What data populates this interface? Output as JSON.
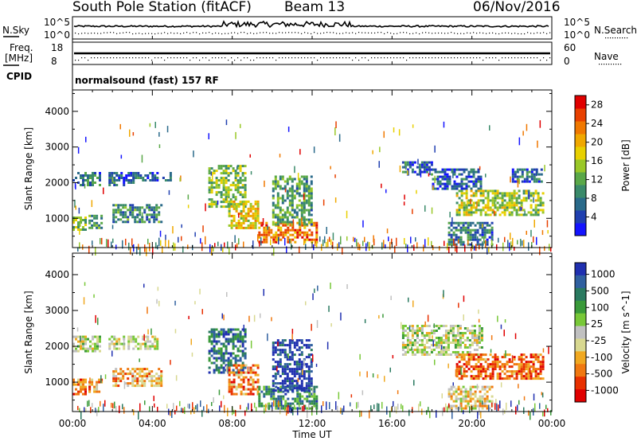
{
  "header": {
    "station": "South Pole Station (fitACF)",
    "beam": "Beam 13",
    "date": "06/Nov/2016"
  },
  "top_panels": {
    "nsky_label": "N.Sky",
    "nsky_ticks": [
      "10^5",
      "10^0"
    ],
    "nsearch_label": "N.Search",
    "nsearch_ticks": [
      "10^5",
      "10^0"
    ],
    "freq_label": "Freq.",
    "freq_unit": "[MHz]",
    "freq_ticks": [
      "18",
      "8"
    ],
    "nave_label": "Nave",
    "nave_ticks": [
      "60",
      "0"
    ],
    "cpid_label": "CPID",
    "cpid_text": "normalsound (fast) 157 RF"
  },
  "chart_data": [
    {
      "type": "heatmap",
      "name": "power",
      "ylabel": "Slant Range [km]",
      "yticks": [
        1000,
        2000,
        3000,
        4000
      ],
      "ylim": [
        180,
        4600
      ],
      "xlim": [
        0,
        24
      ],
      "colorbar_label": "Power [dB]",
      "colorbar_ticks": [
        4,
        8,
        12,
        16,
        20,
        24,
        28
      ],
      "colorbar_range": [
        0,
        30
      ],
      "colors": [
        "#1414ff",
        "#2040b0",
        "#2a6a8a",
        "#3a8a6a",
        "#5aa848",
        "#9ac828",
        "#e8d000",
        "#f0a800",
        "#f07800",
        "#e84000",
        "#e00000"
      ],
      "echo_regions": [
        {
          "t": [
            0.0,
            1.4
          ],
          "r": [
            1900,
            2300
          ],
          "level": 0.25
        },
        {
          "t": [
            1.8,
            3.0
          ],
          "r": [
            1950,
            2300
          ],
          "level": 0.22
        },
        {
          "t": [
            3.0,
            4.2
          ],
          "r": [
            2050,
            2300
          ],
          "level": 0.22
        },
        {
          "t": [
            4.5,
            5.0
          ],
          "r": [
            2050,
            2300
          ],
          "level": 0.2
        },
        {
          "t": [
            0.0,
            0.7
          ],
          "r": [
            700,
            1050
          ],
          "level": 0.45
        },
        {
          "t": [
            0.8,
            1.5
          ],
          "r": [
            750,
            1100
          ],
          "level": 0.35
        },
        {
          "t": [
            2.0,
            4.5
          ],
          "r": [
            900,
            1400
          ],
          "level": 0.3
        },
        {
          "t": [
            6.8,
            8.6
          ],
          "r": [
            1300,
            2500
          ],
          "level": 0.45
        },
        {
          "t": [
            7.8,
            9.3
          ],
          "r": [
            700,
            1500
          ],
          "level": 0.6
        },
        {
          "t": [
            9.3,
            12.2
          ],
          "r": [
            300,
            900
          ],
          "level": 0.75
        },
        {
          "t": [
            10.0,
            12.0
          ],
          "r": [
            800,
            2200
          ],
          "level": 0.35
        },
        {
          "t": [
            16.5,
            18.0
          ],
          "r": [
            2200,
            2600
          ],
          "level": 0.2
        },
        {
          "t": [
            18.0,
            20.5
          ],
          "r": [
            1800,
            2400
          ],
          "level": 0.2
        },
        {
          "t": [
            19.2,
            23.6
          ],
          "r": [
            1100,
            1800
          ],
          "level": 0.5
        },
        {
          "t": [
            18.8,
            21.0
          ],
          "r": [
            250,
            900
          ],
          "level": 0.25
        },
        {
          "t": [
            22.0,
            23.5
          ],
          "r": [
            2000,
            2400
          ],
          "level": 0.22
        }
      ]
    },
    {
      "type": "heatmap",
      "name": "velocity",
      "ylabel": "Slant Range [km]",
      "yticks": [
        1000,
        2000,
        3000,
        4000
      ],
      "ylim": [
        180,
        4600
      ],
      "xlim": [
        0,
        24
      ],
      "xticks": [
        "00:00",
        "04:00",
        "08:00",
        "12:00",
        "16:00",
        "20:00",
        "00:00"
      ],
      "xlabel": "Time UT",
      "colorbar_label": "Velocity [m s^-1]",
      "colorbar_ticks": [
        "1000",
        "500",
        "100",
        "25",
        "-25",
        "-100",
        "-500",
        "-1000"
      ],
      "colors": [
        "#2030b0",
        "#3060a0",
        "#2a7a60",
        "#3a9a3a",
        "#78c838",
        "#c0c0c0",
        "#d8d890",
        "#f0a820",
        "#f07810",
        "#e83000",
        "#e00000"
      ],
      "echo_regions": [
        {
          "t": [
            0.0,
            1.4
          ],
          "r": [
            1900,
            2300
          ],
          "level": 0.5
        },
        {
          "t": [
            1.8,
            4.2
          ],
          "r": [
            1950,
            2300
          ],
          "level": 0.5
        },
        {
          "t": [
            0.0,
            0.7
          ],
          "r": [
            700,
            1100
          ],
          "level": 0.8
        },
        {
          "t": [
            0.8,
            1.5
          ],
          "r": [
            750,
            1100
          ],
          "level": 0.75
        },
        {
          "t": [
            2.0,
            4.5
          ],
          "r": [
            900,
            1400
          ],
          "level": 0.7
        },
        {
          "t": [
            6.8,
            8.6
          ],
          "r": [
            1300,
            2500
          ],
          "level": 0.2
        },
        {
          "t": [
            7.8,
            9.3
          ],
          "r": [
            700,
            1500
          ],
          "level": 0.75
        },
        {
          "t": [
            9.3,
            12.2
          ],
          "r": [
            300,
            900
          ],
          "level": 0.25
        },
        {
          "t": [
            10.0,
            12.0
          ],
          "r": [
            800,
            2200
          ],
          "level": 0.05
        },
        {
          "t": [
            16.5,
            20.5
          ],
          "r": [
            1800,
            2600
          ],
          "level": 0.5
        },
        {
          "t": [
            19.2,
            23.6
          ],
          "r": [
            1100,
            1800
          ],
          "level": 0.8
        },
        {
          "t": [
            18.8,
            21.0
          ],
          "r": [
            250,
            900
          ],
          "level": 0.6
        }
      ]
    }
  ]
}
